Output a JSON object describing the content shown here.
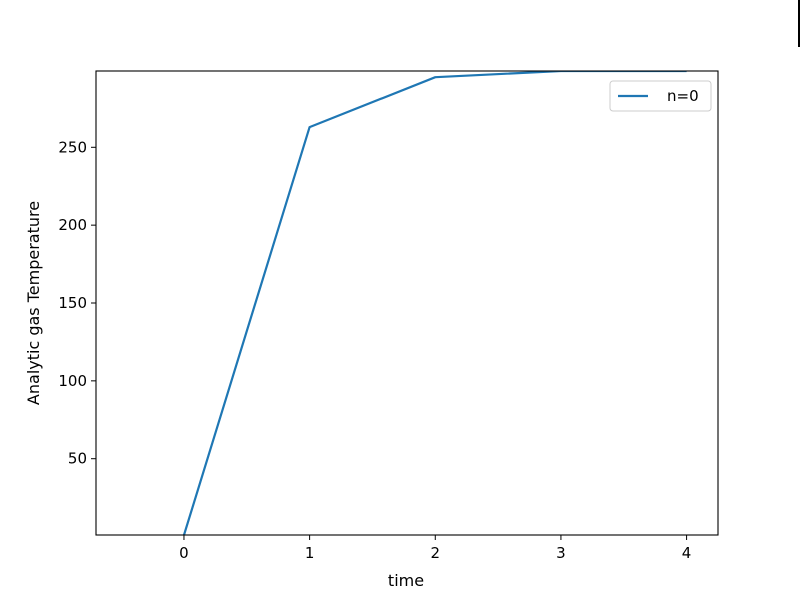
{
  "chart_data": {
    "type": "line",
    "xlabel": "time",
    "ylabel": "Analytic gas Temperature",
    "xlim": [
      -0.7,
      4.25
    ],
    "ylim": [
      1,
      299
    ],
    "xticks": [
      0,
      1,
      2,
      3,
      4
    ],
    "yticks": [
      50,
      100,
      150,
      200,
      250
    ],
    "grid": false,
    "legend_position": "upper right",
    "series": [
      {
        "name": "n=0",
        "color": "#1f77b4",
        "x": [
          0,
          1,
          2,
          3,
          4
        ],
        "y": [
          1,
          263,
          295,
          299,
          299
        ]
      }
    ]
  }
}
